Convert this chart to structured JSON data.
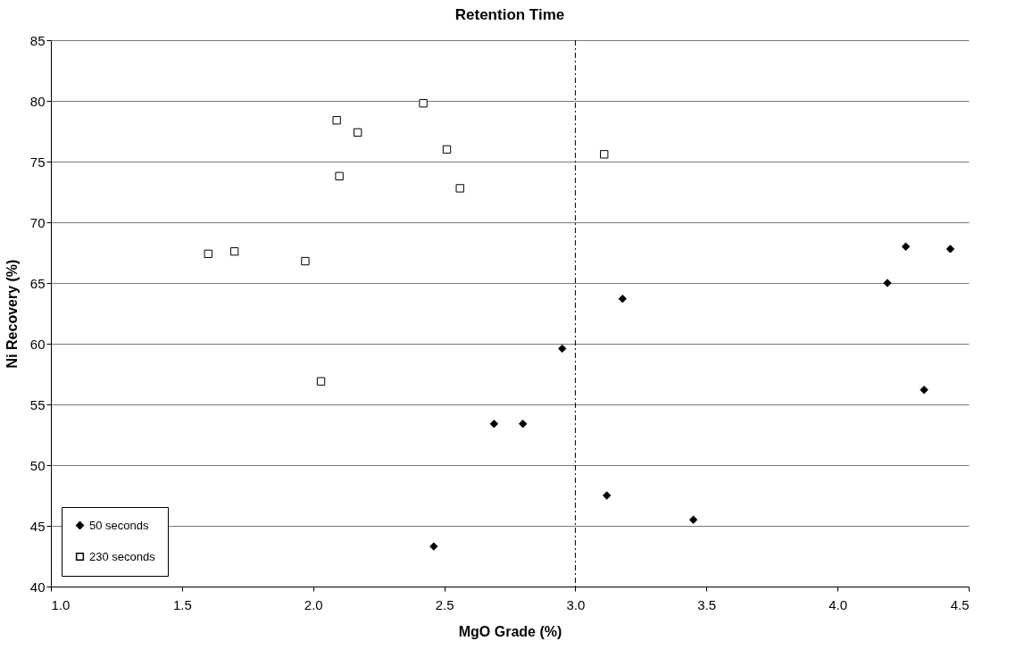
{
  "chart_data": {
    "type": "scatter",
    "title": "Retention Time",
    "xlabel": "MgO Grade (%)",
    "ylabel": "Ni Recovery (%)",
    "xlim": [
      1.0,
      4.5
    ],
    "ylim": [
      40,
      85
    ],
    "xticks": [
      {
        "value": 1,
        "label": "1.0"
      },
      {
        "value": 1.5,
        "label": "1.5"
      },
      {
        "value": 2,
        "label": "2.0"
      },
      {
        "value": 2.5,
        "label": "2.5"
      },
      {
        "value": 3,
        "label": "3.0"
      },
      {
        "value": 3.5,
        "label": "3.5"
      },
      {
        "value": 4,
        "label": "4.0"
      },
      {
        "value": 4.5,
        "label": "4.5"
      }
    ],
    "yticks": [
      40,
      45,
      50,
      55,
      60,
      65,
      70,
      75,
      80,
      85
    ],
    "grid": "y",
    "legend": "bottom left",
    "ref_lines": [
      {
        "axis": "x",
        "value": 3.0,
        "color": "#000000",
        "line_style": "dashed"
      }
    ],
    "series": [
      {
        "name": "50 seconds",
        "color": "#000000",
        "marker": "diamond",
        "x": [
          2.46,
          2.69,
          2.8,
          2.95,
          3.12,
          3.18,
          3.45,
          4.19,
          4.26,
          4.33,
          4.43
        ],
        "values": [
          43.3,
          53.4,
          53.4,
          59.6,
          47.5,
          63.7,
          45.5,
          65.0,
          68.0,
          56.2,
          67.8
        ]
      },
      {
        "name": "230 seconds",
        "color": "#000000",
        "marker": "square",
        "x": [
          1.6,
          1.7,
          1.97,
          2.03,
          2.09,
          2.1,
          2.17,
          2.42,
          2.51,
          2.56,
          3.11
        ],
        "values": [
          67.4,
          67.6,
          66.8,
          56.9,
          78.4,
          73.8,
          77.4,
          79.8,
          76.0,
          72.8,
          75.6
        ]
      }
    ]
  }
}
